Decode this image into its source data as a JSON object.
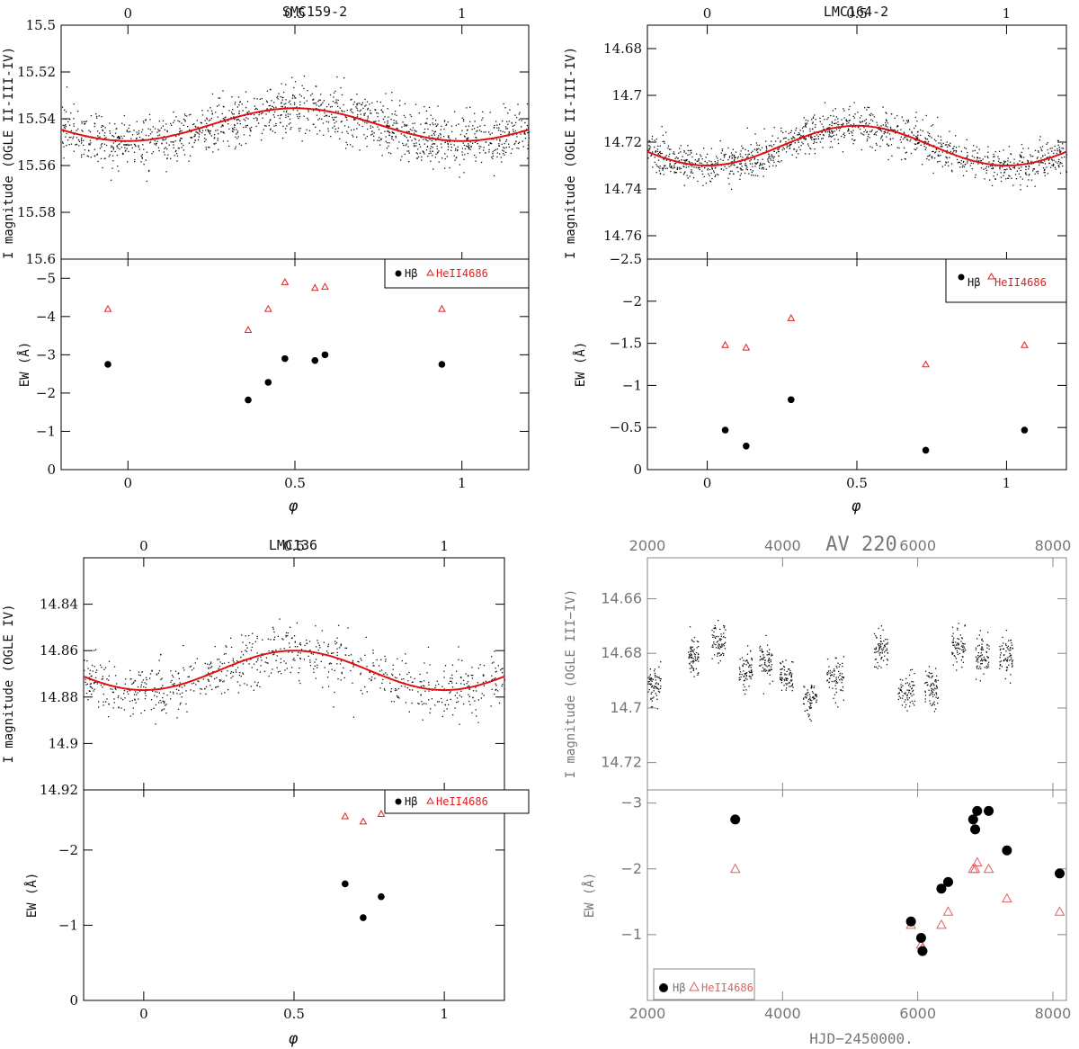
{
  "chart_data": [
    {
      "type": "scatter",
      "title": "SMC159-2",
      "top_axis_ticks": [
        "0",
        "0.5",
        "1"
      ],
      "xlabel": "φ",
      "xlim": [
        -0.2,
        1.2
      ],
      "x_ticks": [
        "0",
        "0.5",
        "1"
      ],
      "upper": {
        "ylabel": "I magnitude (OGLE II-III-IV)",
        "ylim": [
          15.5,
          15.6
        ],
        "y_ticks": [
          "15.5",
          "15.52",
          "15.54",
          "15.56",
          "15.58",
          "15.6"
        ],
        "mean": 15.5425,
        "amplitude": 0.007,
        "scatter": 0.0055,
        "n_points": 1400,
        "fit": "sinusoid, red"
      },
      "lower": {
        "ylabel": "EW (Å)",
        "ylim": [
          0,
          -5.5
        ],
        "y_ticks": [
          "0",
          "−1",
          "−2",
          "−3",
          "−4",
          "−5"
        ],
        "legend": {
          "hbeta": "Hβ",
          "heii": "HeII4686"
        },
        "series": [
          {
            "name": "Hβ",
            "x": [
              -0.06,
              0.36,
              0.42,
              0.47,
              0.56,
              0.59,
              0.94
            ],
            "y": [
              -2.75,
              -1.82,
              -2.28,
              -2.9,
              -2.85,
              -3.0,
              -2.75
            ]
          },
          {
            "name": "HeII4686",
            "x": [
              -0.06,
              0.36,
              0.42,
              0.47,
              0.56,
              0.59,
              0.94
            ],
            "y": [
              -4.2,
              -3.65,
              -4.2,
              -4.9,
              -4.75,
              -4.78,
              -4.2
            ]
          }
        ]
      }
    },
    {
      "type": "scatter",
      "title": "LMC164-2",
      "top_axis_ticks": [
        "0",
        "0.5",
        "1"
      ],
      "xlabel": "φ",
      "xlim": [
        -0.2,
        1.2
      ],
      "x_ticks": [
        "0",
        "0.5",
        "1"
      ],
      "upper": {
        "ylabel": "I magnitude (OGLE II-III-IV)",
        "ylim": [
          14.67,
          14.77
        ],
        "y_ticks": [
          "14.68",
          "14.7",
          "14.72",
          "14.74",
          "14.76"
        ],
        "mean": 14.7215,
        "amplitude": 0.0085,
        "scatter": 0.004,
        "n_points": 1300,
        "fit": "sinusoid, red"
      },
      "lower": {
        "ylabel": "EW (Å)",
        "ylim": [
          0,
          -2.5
        ],
        "y_ticks": [
          "0",
          "−0.5",
          "−1",
          "−1.5",
          "−2",
          "−2.5"
        ],
        "legend": {
          "hbeta": "Hβ",
          "heii": "HeII4686"
        },
        "series": [
          {
            "name": "Hβ",
            "x": [
              0.06,
              0.13,
              0.28,
              0.73,
              1.06
            ],
            "y": [
              -0.47,
              -0.28,
              -0.83,
              -0.23,
              -0.47
            ]
          },
          {
            "name": "HeII4686",
            "x": [
              0.06,
              0.13,
              0.28,
              0.73,
              1.06
            ],
            "y": [
              -1.48,
              -1.45,
              -1.8,
              -1.25,
              -1.48
            ]
          }
        ]
      }
    },
    {
      "type": "scatter",
      "title": "LMC136",
      "top_axis_ticks": [
        "0",
        "0.5",
        "1"
      ],
      "xlabel": "φ",
      "xlim": [
        -0.2,
        1.2
      ],
      "x_ticks": [
        "0",
        "0.5",
        "1"
      ],
      "upper": {
        "ylabel": "I magnitude (OGLE IV)",
        "ylim": [
          14.82,
          14.92
        ],
        "y_ticks": [
          "14.84",
          "14.86",
          "14.88",
          "14.9",
          "14.92"
        ],
        "mean": 14.8685,
        "amplitude": 0.0085,
        "scatter": 0.006,
        "n_points": 800,
        "fit": "sinusoid, red"
      },
      "lower": {
        "ylabel": "EW (Å)",
        "ylim": [
          0,
          -2.8
        ],
        "y_ticks": [
          "0",
          "−1",
          "−2"
        ],
        "legend": {
          "hbeta": "Hβ",
          "heii": "HeII4686"
        },
        "series": [
          {
            "name": "Hβ",
            "x": [
              0.67,
              0.73,
              0.79
            ],
            "y": [
              -1.55,
              -1.1,
              -1.38
            ]
          },
          {
            "name": "HeII4686",
            "x": [
              0.67,
              0.73,
              0.79
            ],
            "y": [
              -2.45,
              -2.38,
              -2.48
            ]
          }
        ]
      }
    },
    {
      "type": "scatter",
      "title": "AV 220",
      "top_axis_ticks": [
        "2000",
        "4000",
        "6000",
        "8000"
      ],
      "xlabel": "HJD−2450000.",
      "xlim": [
        2000,
        8200
      ],
      "x_ticks": [
        "2000",
        "4000",
        "6000",
        "8000"
      ],
      "upper": {
        "ylabel": "I magnitude (OGLE III−IV)",
        "ylim": [
          14.645,
          14.73
        ],
        "y_ticks": [
          "14.66",
          "14.68",
          "14.7",
          "14.72"
        ],
        "segments": [
          {
            "x": [
              2000,
              2200
            ],
            "mag": 14.691
          },
          {
            "x": [
              2600,
              2750
            ],
            "mag": 14.681
          },
          {
            "x": [
              2950,
              3150
            ],
            "mag": 14.676
          },
          {
            "x": [
              3350,
              3550
            ],
            "mag": 14.686
          },
          {
            "x": [
              3650,
              3850
            ],
            "mag": 14.683
          },
          {
            "x": [
              3950,
              4150
            ],
            "mag": 14.688
          },
          {
            "x": [
              4300,
              4500
            ],
            "mag": 14.696
          },
          {
            "x": [
              4650,
              4900
            ],
            "mag": 14.689
          },
          {
            "x": [
              5350,
              5550
            ],
            "mag": 14.678
          },
          {
            "x": [
              5700,
              5950
            ],
            "mag": 14.694
          },
          {
            "x": [
              6100,
              6300
            ],
            "mag": 14.692
          },
          {
            "x": [
              6500,
              6700
            ],
            "mag": 14.677
          },
          {
            "x": [
              6850,
              7050
            ],
            "mag": 14.681
          },
          {
            "x": [
              7200,
              7400
            ],
            "mag": 14.681
          }
        ]
      },
      "lower": {
        "ylabel": "EW (Å)",
        "ylim": [
          0,
          -3.2
        ],
        "y_ticks": [
          "−1",
          "−2",
          "−3"
        ],
        "legend": {
          "hbeta": "Hβ",
          "heii": "HeII4686"
        },
        "series": [
          {
            "name": "Hβ",
            "x": [
              3300,
              5900,
              6050,
              6070,
              6350,
              6450,
              6820,
              6850,
              6880,
              7050,
              7320,
              8100
            ],
            "y": [
              -2.75,
              -1.2,
              -0.95,
              -0.75,
              -1.7,
              -1.8,
              -2.75,
              -2.6,
              -2.88,
              -2.88,
              -2.28,
              -1.93
            ]
          },
          {
            "name": "HeII4686",
            "x": [
              3300,
              5900,
              6050,
              6070,
              6350,
              6450,
              6820,
              6850,
              6880,
              7050,
              7320,
              8100
            ],
            "y": [
              -2.0,
              -1.15,
              -0.85,
              -0.8,
              -1.15,
              -1.35,
              -2.0,
              -2.0,
              -2.1,
              -2.0,
              -1.55,
              -1.35
            ]
          }
        ]
      }
    }
  ]
}
